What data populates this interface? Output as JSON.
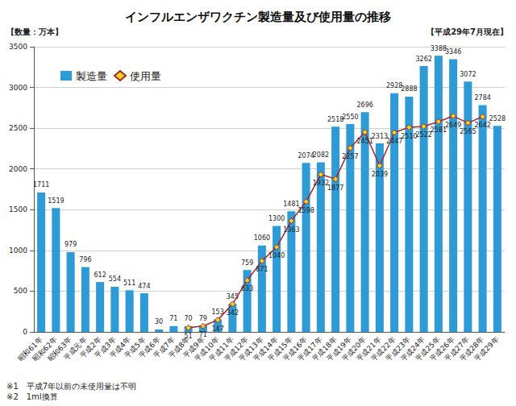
{
  "chart_data": {
    "type": "bar",
    "title": "インフルエンザワクチン製造量及び使用量の推移",
    "subtitle": "【平成29年7月現在】",
    "ylabel": "【数量：万本】",
    "annotations": [
      "※1　平成7年以前の未使用量は不明",
      "※2　1ml換算"
    ],
    "categories": [
      "昭和61年",
      "昭和62年",
      "昭和63年",
      "平成元年",
      "平成2年",
      "平成3年",
      "平成4年",
      "平成5年",
      "平成6年",
      "平成7年",
      "平成8年",
      "平成9年",
      "平成10年",
      "平成11年",
      "平成12年",
      "平成13年",
      "平成14年",
      "平成15年",
      "平成16年",
      "平成17年",
      "平成18年",
      "平成19年",
      "平成20年",
      "平成21年",
      "平成22年",
      "平成23年",
      "平成24年",
      "平成25年",
      "平成26年",
      "平成27年",
      "平成28年",
      "平成29年"
    ],
    "series": [
      {
        "name": "製造量",
        "type": "bar",
        "color": "#2e9bd6",
        "values": [
          1711,
          1519,
          979,
          796,
          612,
          554,
          511,
          474,
          30,
          71,
          70,
          79,
          153,
          345,
          759,
          1060,
          1300,
          1481,
          2074,
          2082,
          2518,
          2550,
          2696,
          2313,
          2928,
          2888,
          3262,
          3388,
          3346,
          3072,
          2784,
          2528
        ]
      },
      {
        "name": "使用量",
        "type": "line",
        "color": "#a3262c",
        "marker": "diamond",
        "values": [
          null,
          null,
          null,
          null,
          null,
          null,
          null,
          null,
          null,
          null,
          51,
          71,
          147,
          342,
          633,
          871,
          1040,
          1363,
          1598,
          1932,
          1877,
          2257,
          2451,
          2039,
          2447,
          2510,
          2522,
          2581,
          2649,
          2565,
          2642,
          null
        ]
      }
    ],
    "ylim": [
      0,
      3500
    ],
    "yticks": [
      0,
      500,
      1000,
      1500,
      2000,
      2500,
      3000,
      3500
    ],
    "grid": true,
    "legend": "top-left",
    "data_labels": true
  }
}
